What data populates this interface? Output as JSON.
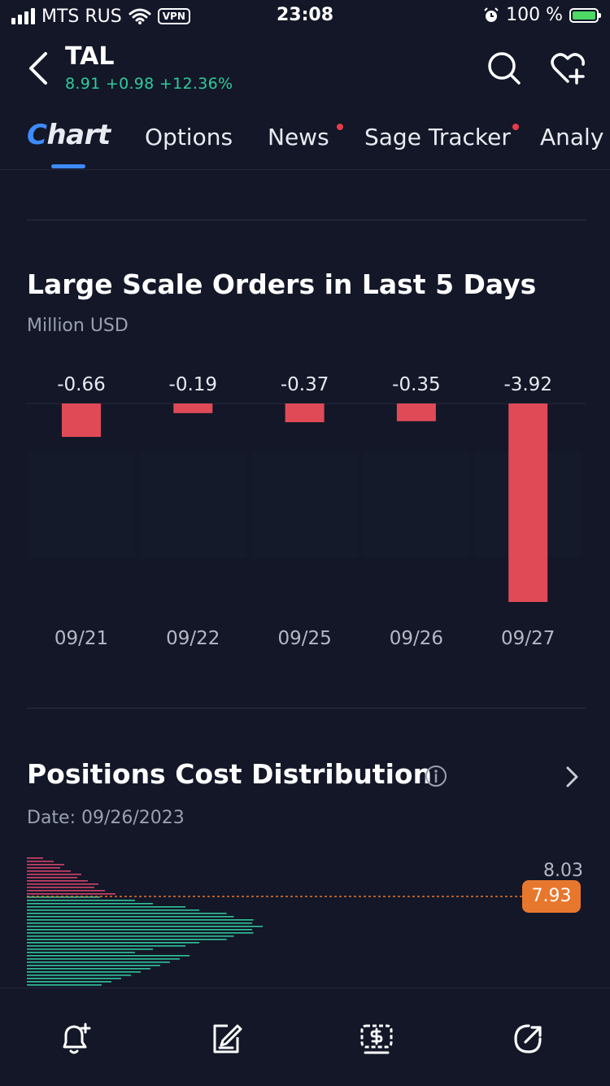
{
  "status_bar": {
    "carrier": "MTS RUS",
    "vpn": "VPN",
    "time": "23:08",
    "battery": "100 %"
  },
  "header": {
    "ticker": "TAL",
    "quote": "8.91 +0.98 +12.36%"
  },
  "tabs": [
    {
      "label": "Chart",
      "active": true
    },
    {
      "label": "Options"
    },
    {
      "label": "News",
      "dot": true
    },
    {
      "label": "Sage Tracker",
      "dot": true
    },
    {
      "label": "Analy"
    }
  ],
  "large_orders": {
    "title": "Large Scale Orders in Last 5 Days",
    "unit": "Million USD"
  },
  "chart_data": {
    "type": "bar",
    "title": "Large Scale Orders in Last 5 Days",
    "subtitle": "Million USD",
    "categories": [
      "09/21",
      "09/22",
      "09/25",
      "09/26",
      "09/27"
    ],
    "values": [
      -0.66,
      -0.19,
      -0.37,
      -0.35,
      -3.92
    ],
    "value_labels": [
      "-0.66",
      "-0.19",
      "-0.37",
      "-0.35",
      "-3.92"
    ],
    "ylim": [
      -3.92,
      0
    ],
    "bar_color": "#e04a57"
  },
  "positions": {
    "title": "Positions Cost Distribution",
    "date": "Date: 09/26/2023",
    "price_high": "8.03",
    "current_price": "7.93"
  },
  "colors": {
    "accent": "#3d8bff",
    "positive": "#2ecc9b",
    "negative": "#e04a57",
    "price_tag": "#e8772e"
  },
  "bottom_bar": {
    "icons": [
      "alert-add-icon",
      "note-edit-icon",
      "trade-dollar-icon",
      "share-icon"
    ]
  }
}
